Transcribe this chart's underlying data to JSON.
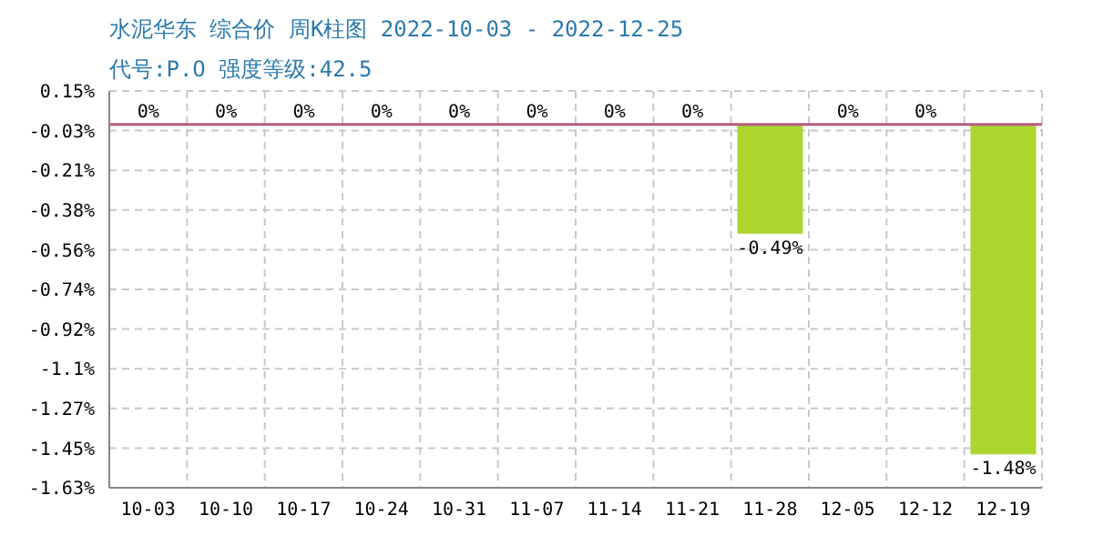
{
  "chart_data": {
    "type": "bar",
    "title": "水泥华东 综合价 周K柱图 2022-10-03 - 2022-12-25",
    "subtitle": "代号:P.O 强度等级:42.5",
    "categories": [
      "10-03",
      "10-10",
      "10-17",
      "10-24",
      "10-31",
      "11-07",
      "11-14",
      "11-21",
      "11-28",
      "12-05",
      "12-12",
      "12-19"
    ],
    "values": [
      0,
      0,
      0,
      0,
      0,
      0,
      0,
      0,
      -0.49,
      0,
      0,
      -1.48
    ],
    "value_labels": [
      "0%",
      "0%",
      "0%",
      "0%",
      "0%",
      "0%",
      "0%",
      "0%",
      "-0.49%",
      "0%",
      "0%",
      "-1.48%"
    ],
    "color": "#acd52f",
    "ylim": [
      -1.63,
      0.15
    ],
    "yticks": [
      {
        "value": 0.15,
        "label": "0.15%"
      },
      {
        "value": -0.028,
        "label": "-0.03%"
      },
      {
        "value": -0.206,
        "label": "-0.21%"
      },
      {
        "value": -0.384,
        "label": "-0.38%"
      },
      {
        "value": -0.562,
        "label": "-0.56%"
      },
      {
        "value": -0.74,
        "label": "-0.74%"
      },
      {
        "value": -0.918,
        "label": "-0.92%"
      },
      {
        "value": -1.096,
        "label": "-1.1%"
      },
      {
        "value": -1.274,
        "label": "-1.27%"
      },
      {
        "value": -1.452,
        "label": "-1.45%"
      },
      {
        "value": -1.63,
        "label": "-1.63%"
      }
    ],
    "ref_lines": [
      {
        "axis": "y",
        "value": 0,
        "color": "#b85a82"
      }
    ],
    "grid": true
  }
}
